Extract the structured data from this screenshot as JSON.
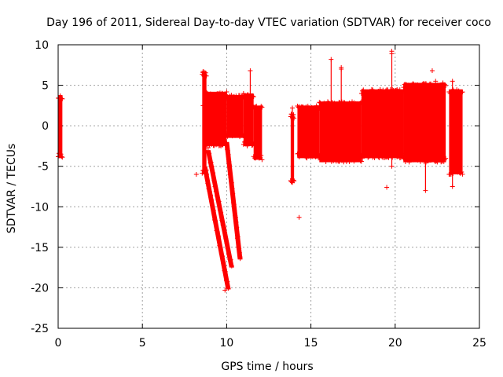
{
  "chart_data": {
    "type": "scatter",
    "title": "Day 196 of 2011, Sidereal Day-to-day VTEC variation (SDTVAR) for receiver coco",
    "xlabel": "GPS time / hours",
    "ylabel": "SDTVAR / TECUs",
    "xlim": [
      0,
      25
    ],
    "ylim": [
      -25,
      10
    ],
    "xticks": [
      0,
      5,
      10,
      15,
      20,
      25
    ],
    "yticks": [
      10,
      5,
      0,
      -5,
      -10,
      -15,
      -20,
      -25
    ],
    "grid": true,
    "marker": "+",
    "color": "#ff0000",
    "series": [
      {
        "bands": [
          {
            "x": [
              0.0,
              0.25
            ],
            "y": [
              -4.0,
              3.8
            ]
          },
          {
            "x": [
              8.55,
              8.8
            ],
            "y": [
              -6.0,
              6.7
            ]
          },
          {
            "x": [
              8.7,
              10.0
            ],
            "y": [
              -2.5,
              4.2
            ]
          },
          {
            "x": [
              10.0,
              11.0
            ],
            "y": [
              -1.5,
              3.8
            ]
          },
          {
            "x": [
              11.0,
              11.6
            ],
            "y": [
              -2.5,
              4.0
            ]
          },
          {
            "x": [
              11.6,
              12.1
            ],
            "y": [
              -4.2,
              2.5
            ]
          },
          {
            "x": [
              13.8,
              14.0
            ],
            "y": [
              -7.0,
              1.5
            ]
          },
          {
            "x": [
              14.2,
              15.5
            ],
            "y": [
              -4.0,
              2.5
            ]
          },
          {
            "x": [
              15.5,
              18.0
            ],
            "y": [
              -4.5,
              3.0
            ]
          },
          {
            "x": [
              18.0,
              20.5
            ],
            "y": [
              -4.0,
              4.5
            ]
          },
          {
            "x": [
              20.5,
              23.0
            ],
            "y": [
              -4.5,
              5.3
            ]
          },
          {
            "x": [
              23.2,
              24.0
            ],
            "y": [
              -6.0,
              4.5
            ]
          }
        ],
        "tails": [
          {
            "x": [
              8.7,
              10.1
            ],
            "y": [
              -5.0,
              -20.2
            ]
          },
          {
            "x": [
              8.9,
              10.3
            ],
            "y": [
              -3.0,
              -17.5
            ]
          },
          {
            "x": [
              10.0,
              10.8
            ],
            "y": [
              -2.0,
              -16.5
            ]
          }
        ],
        "spikes": [
          {
            "x": 8.6,
            "y": [
              2.5,
              6.7
            ]
          },
          {
            "x": 11.4,
            "y": [
              -2.0,
              6.8
            ]
          },
          {
            "x": 13.9,
            "y": [
              -7.0,
              2.2
            ]
          },
          {
            "x": 16.2,
            "y": [
              -4.0,
              8.2
            ]
          },
          {
            "x": 16.8,
            "y": [
              -3.0,
              7.0
            ]
          },
          {
            "x": 19.8,
            "y": [
              -5.0,
              9.2
            ]
          },
          {
            "x": 21.8,
            "y": [
              -8.0,
              3.0
            ]
          },
          {
            "x": 23.4,
            "y": [
              -7.5,
              5.5
            ]
          }
        ],
        "outliers": [
          {
            "x": 14.3,
            "y": -11.3
          },
          {
            "x": 16.8,
            "y": 7.2
          },
          {
            "x": 19.5,
            "y": -7.6
          },
          {
            "x": 19.8,
            "y": 8.9
          },
          {
            "x": 22.2,
            "y": 6.8
          },
          {
            "x": 22.4,
            "y": 5.5
          },
          {
            "x": 8.2,
            "y": -6.0
          },
          {
            "x": 9.9,
            "y": -20.3
          },
          {
            "x": 10.8,
            "y": -16.4
          }
        ]
      }
    ]
  }
}
